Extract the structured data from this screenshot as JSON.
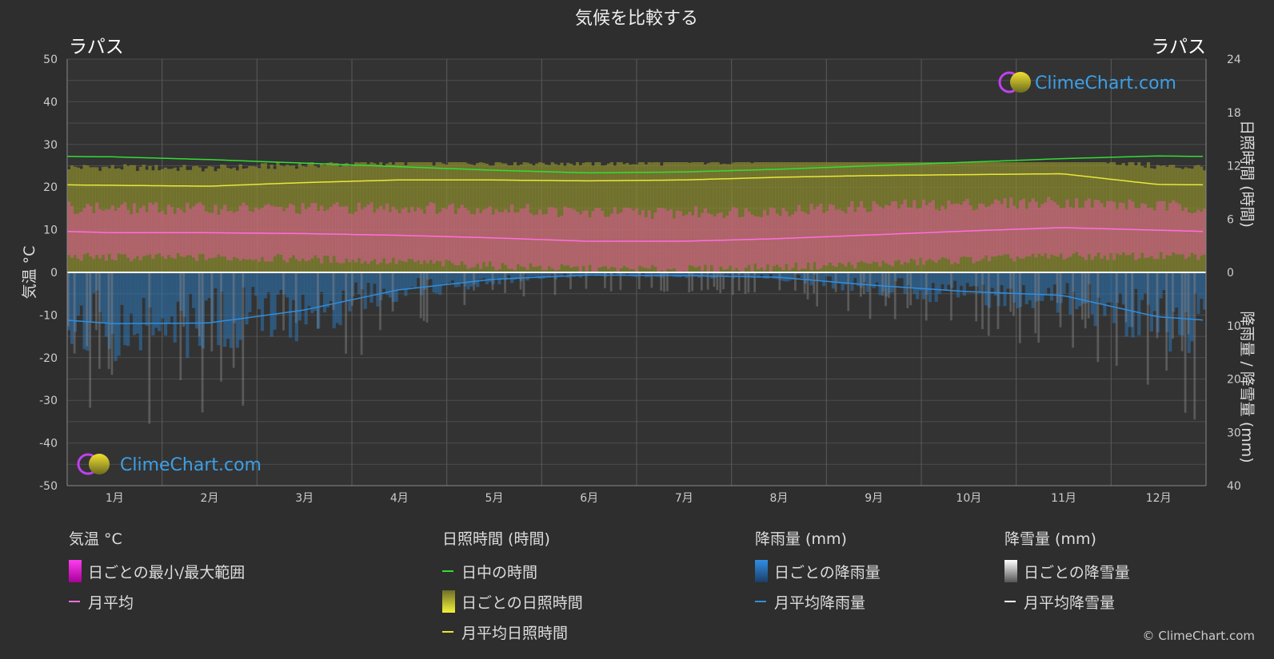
{
  "chart_data": {
    "type": "area",
    "title": "気候を比較する",
    "location_left": "ラパス",
    "location_right": "ラパス",
    "y_left_label": "気温 °C",
    "y_right_top_label": "日照時間 (時間)",
    "y_right_bottom_label": "降雨量 / 降雪量 (mm)",
    "categories": [
      "1月",
      "2月",
      "3月",
      "4月",
      "5月",
      "6月",
      "7月",
      "8月",
      "9月",
      "10月",
      "11月",
      "12月"
    ],
    "temp_ylim": [
      -50,
      50
    ],
    "temp_ticks": [
      "50",
      "40",
      "30",
      "20",
      "10",
      "0",
      "-10",
      "-20",
      "-30",
      "-40",
      "-50"
    ],
    "sun_ylim": [
      0,
      24
    ],
    "sun_ticks": [
      "24",
      "18",
      "12",
      "6",
      "0"
    ],
    "precip_ylim": [
      0,
      40
    ],
    "precip_ticks": [
      "0",
      "10",
      "20",
      "30",
      "40"
    ],
    "series": [
      {
        "name": "日中の時間",
        "unit": "hours",
        "values": [
          13.0,
          12.7,
          12.3,
          11.9,
          11.5,
          11.2,
          11.3,
          11.6,
          12.0,
          12.4,
          12.8,
          13.1
        ]
      },
      {
        "name": "月平均日照時間",
        "unit": "hours",
        "values": [
          9.8,
          9.7,
          10.1,
          10.4,
          10.4,
          10.3,
          10.4,
          10.7,
          10.9,
          11.0,
          11.1,
          9.9
        ]
      },
      {
        "name": "月平均",
        "unit": "°C",
        "values": [
          9.3,
          9.3,
          9.1,
          8.7,
          8.1,
          7.3,
          7.3,
          7.9,
          8.8,
          9.7,
          10.5,
          9.9
        ]
      },
      {
        "name": "月平均降雨量",
        "unit": "mm",
        "values": [
          9.6,
          9.5,
          7.1,
          3.3,
          1.3,
          0.5,
          0.6,
          0.9,
          2.4,
          3.6,
          4.3,
          8.3
        ]
      },
      {
        "name": "月平均降雪量",
        "unit": "mm",
        "values": [
          0,
          0,
          0,
          0,
          0,
          0,
          0,
          0,
          0,
          0,
          0,
          0
        ]
      }
    ],
    "temp_daily_min": [
      3.5,
      3.5,
      3.2,
      2.5,
      1.5,
      0.8,
      0.7,
      1.2,
      2.0,
      3.0,
      3.8,
      3.8
    ],
    "temp_daily_max": [
      15.0,
      15.0,
      15.0,
      15.2,
      15.0,
      14.0,
      14.0,
      14.5,
      15.5,
      16.0,
      16.5,
      15.5
    ],
    "colors": {
      "background": "#2e2e2e",
      "daylight": "#33dd33",
      "sunshine_line": "#e8e83a",
      "sunshine_fill": "#8b8b2e",
      "temp_range": "#e0589a",
      "temp_mean": "#ff6ee0",
      "rain": "#2c74b4",
      "rain_line": "#2f8ee0",
      "snow": "#8a8a8a",
      "snow_line": "#ffffff"
    }
  },
  "watermark": {
    "text": "ClimeChart.com"
  },
  "legend": {
    "temperature": {
      "title": "気温 °C",
      "range_label": "日ごとの最小/最大範囲",
      "mean_label": "月平均"
    },
    "sunshine": {
      "title": "日照時間 (時間)",
      "daylight_label": "日中の時間",
      "daily_label": "日ごとの日照時間",
      "mean_label": "月平均日照時間"
    },
    "rain": {
      "title": "降雨量 (mm)",
      "daily_label": "日ごとの降雨量",
      "mean_label": "月平均降雨量"
    },
    "snow": {
      "title": "降雪量 (mm)",
      "daily_label": "日ごとの降雪量",
      "mean_label": "月平均降雪量"
    }
  },
  "copyright": "© ClimeChart.com"
}
